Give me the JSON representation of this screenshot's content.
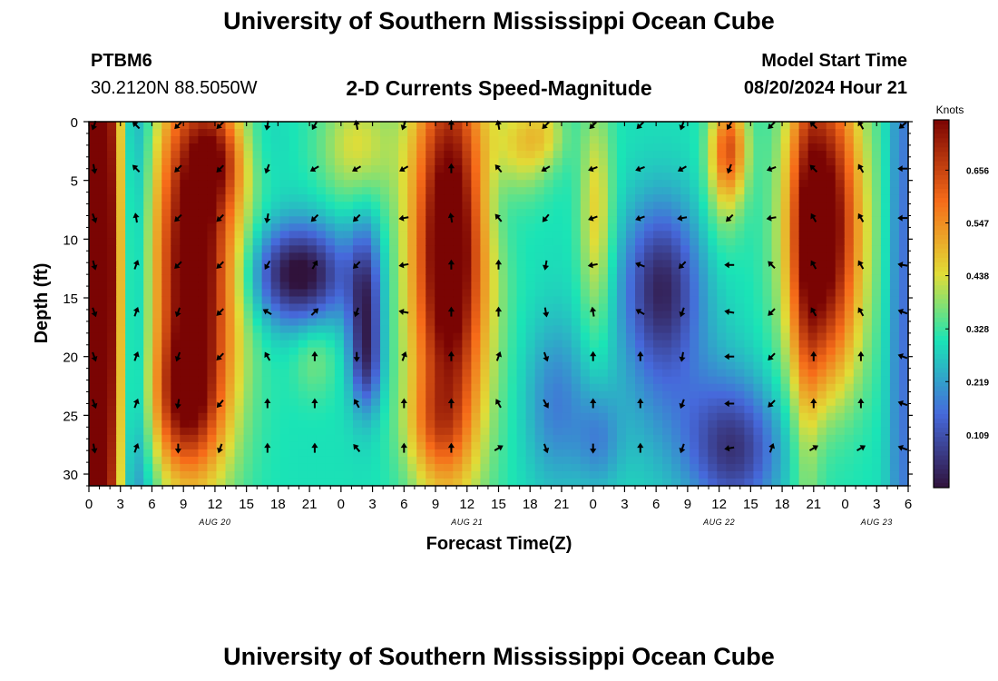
{
  "header": {
    "title": "University of Southern Mississippi Ocean Cube",
    "station": "PTBM6",
    "coords": "30.2120N  88.5050W",
    "plot_title": "2-D Currents Speed-Magnitude",
    "start_label": "Model Start Time",
    "start_value": "08/20/2024 Hour 21"
  },
  "footer": {
    "title": "University of Southern Mississippi Ocean Cube"
  },
  "colors": {
    "dark_blue": "#30123b",
    "blue": "#4669db",
    "cyan": "#1ae4b6",
    "yellow": "#e1dd37",
    "orange": "#f66b19",
    "dark_red": "#7a0403",
    "arrow": "#000000"
  },
  "chart_data": {
    "type": "heatmap",
    "title": "2-D Currents Speed-Magnitude",
    "xlabel": "Forecast Time(Z)",
    "ylabel": "Depth (ft)",
    "x_range_hours": [
      0,
      78
    ],
    "y_range_ft": [
      0,
      31
    ],
    "x_ticks": [
      {
        "hour": 0,
        "label": "0"
      },
      {
        "hour": 3,
        "label": "3"
      },
      {
        "hour": 6,
        "label": "6"
      },
      {
        "hour": 9,
        "label": "9"
      },
      {
        "hour": 12,
        "label": "12"
      },
      {
        "hour": 15,
        "label": "15"
      },
      {
        "hour": 18,
        "label": "18"
      },
      {
        "hour": 21,
        "label": "21"
      },
      {
        "hour": 24,
        "label": "0"
      },
      {
        "hour": 27,
        "label": "3"
      },
      {
        "hour": 30,
        "label": "6"
      },
      {
        "hour": 33,
        "label": "9"
      },
      {
        "hour": 36,
        "label": "12"
      },
      {
        "hour": 39,
        "label": "15"
      },
      {
        "hour": 42,
        "label": "18"
      },
      {
        "hour": 45,
        "label": "21"
      },
      {
        "hour": 48,
        "label": "0"
      },
      {
        "hour": 51,
        "label": "3"
      },
      {
        "hour": 54,
        "label": "6"
      },
      {
        "hour": 57,
        "label": "9"
      },
      {
        "hour": 60,
        "label": "12"
      },
      {
        "hour": 63,
        "label": "15"
      },
      {
        "hour": 66,
        "label": "18"
      },
      {
        "hour": 69,
        "label": "21"
      },
      {
        "hour": 72,
        "label": "0"
      },
      {
        "hour": 75,
        "label": "3"
      },
      {
        "hour": 78,
        "label": "6"
      }
    ],
    "date_labels": [
      {
        "hour": 12,
        "label": "AUG 20"
      },
      {
        "hour": 36,
        "label": "AUG 21"
      },
      {
        "hour": 60,
        "label": "AUG 22"
      },
      {
        "hour": 75,
        "label": "AUG 23"
      }
    ],
    "y_ticks": [
      0,
      5,
      10,
      15,
      20,
      25,
      30
    ],
    "colorbar": {
      "label": "Knots",
      "range": [
        0.0,
        0.76
      ],
      "ticks": [
        "0.656",
        "0.547",
        "0.438",
        "0.328",
        "0.219",
        "0.109"
      ],
      "tick_values": [
        0.656,
        0.547,
        0.438,
        0.328,
        0.219,
        0.109
      ]
    },
    "speed_blobs": [
      {
        "t": 0.5,
        "d": 15,
        "st": 1.5,
        "sd": 40,
        "v": 0.33
      },
      {
        "t": 1.8,
        "d": 12,
        "st": 1.2,
        "sd": 40,
        "v": 0.36
      },
      {
        "t": 3.9,
        "d": 15,
        "st": 1.6,
        "sd": 60,
        "v": -0.16
      },
      {
        "t": 10.0,
        "d": 12,
        "st": 3.0,
        "sd": 12,
        "v": 0.52
      },
      {
        "t": 9.0,
        "d": 24,
        "st": 2.3,
        "sd": 4,
        "v": 0.22
      },
      {
        "t": 12.5,
        "d": 3,
        "st": 2.0,
        "sd": 3,
        "v": 0.2
      },
      {
        "t": 15.5,
        "d": 2,
        "st": 2.0,
        "sd": 3,
        "v": -0.05
      },
      {
        "t": 20.0,
        "d": 13,
        "st": 3.2,
        "sd": 3.0,
        "v": -0.32
      },
      {
        "t": 26.3,
        "d": 16,
        "st": 1.1,
        "sd": 5.0,
        "v": -0.25
      },
      {
        "t": 26.5,
        "d": 21,
        "st": 1.0,
        "sd": 2.5,
        "v": -0.1
      },
      {
        "t": 25.5,
        "d": 2,
        "st": 2.5,
        "sd": 3.5,
        "v": 0.14
      },
      {
        "t": 21.5,
        "d": 20,
        "st": 1.5,
        "sd": 2.5,
        "v": 0.07
      },
      {
        "t": 34.3,
        "d": 11,
        "st": 2.6,
        "sd": 13,
        "v": 0.55
      },
      {
        "t": 33.0,
        "d": 26,
        "st": 2.0,
        "sd": 3,
        "v": 0.12
      },
      {
        "t": 41.0,
        "d": 2,
        "st": 2.0,
        "sd": 3,
        "v": 0.15
      },
      {
        "t": 43.5,
        "d": 1,
        "st": 1.5,
        "sd": 2,
        "v": 0.1
      },
      {
        "t": 39.0,
        "d": 5,
        "st": 1.5,
        "sd": 4,
        "v": -0.05
      },
      {
        "t": 44.5,
        "d": 24,
        "st": 2.0,
        "sd": 5,
        "v": -0.12
      },
      {
        "t": 48.3,
        "d": 8,
        "st": 1.1,
        "sd": 7,
        "v": 0.16
      },
      {
        "t": 48.5,
        "d": 27,
        "st": 1.5,
        "sd": 3,
        "v": -0.1
      },
      {
        "t": 54.5,
        "d": 14,
        "st": 2.6,
        "sd": 5,
        "v": -0.26
      },
      {
        "t": 56.0,
        "d": 24,
        "st": 4.0,
        "sd": 5,
        "v": -0.08
      },
      {
        "t": 61.0,
        "d": 2,
        "st": 1.2,
        "sd": 3,
        "v": 0.26
      },
      {
        "t": 60.5,
        "d": 5,
        "st": 1.3,
        "sd": 4,
        "v": 0.1
      },
      {
        "t": 61.5,
        "d": 28,
        "st": 3.0,
        "sd": 4,
        "v": -0.22
      },
      {
        "t": 70.0,
        "d": 9,
        "st": 2.5,
        "sd": 10,
        "v": 0.52
      },
      {
        "t": 68.3,
        "d": 15,
        "st": 1.0,
        "sd": 16,
        "v": 0.12
      },
      {
        "t": 70.0,
        "d": 27,
        "st": 2.5,
        "sd": 4,
        "v": -0.05
      },
      {
        "t": 77.5,
        "d": 15,
        "st": 1.0,
        "sd": 30,
        "v": -0.14
      }
    ],
    "arrow_cols_hours": [
      0.5,
      4.5,
      8.5,
      12.5,
      17.0,
      21.5,
      25.5,
      30.0,
      34.5,
      39.0,
      43.5,
      48.0,
      52.5,
      56.5,
      61.0,
      65.0,
      69.0,
      73.5,
      77.5
    ],
    "arrow_rows_ft": [
      0.3,
      4.0,
      8.2,
      12.2,
      16.2,
      20.0,
      24.0,
      27.8
    ],
    "arrow_dirs": [
      [
        200,
        315,
        225,
        225,
        190,
        210,
        350,
        200,
        0,
        350,
        225,
        225,
        225,
        200,
        210,
        225,
        315,
        330,
        230
      ],
      [
        170,
        315,
        225,
        225,
        200,
        240,
        240,
        240,
        0,
        320,
        240,
        250,
        250,
        240,
        200,
        250,
        315,
        330,
        270
      ],
      [
        160,
        350,
        225,
        225,
        190,
        225,
        225,
        260,
        350,
        320,
        220,
        250,
        250,
        260,
        225,
        260,
        330,
        330,
        270
      ],
      [
        165,
        20,
        225,
        225,
        210,
        30,
        225,
        260,
        0,
        0,
        190,
        260,
        290,
        225,
        270,
        315,
        330,
        330,
        280
      ],
      [
        160,
        20,
        200,
        225,
        300,
        45,
        200,
        280,
        0,
        0,
        170,
        350,
        300,
        200,
        280,
        225,
        330,
        330,
        290
      ],
      [
        160,
        20,
        200,
        225,
        330,
        0,
        180,
        20,
        0,
        20,
        160,
        0,
        0,
        190,
        270,
        225,
        0,
        0,
        290
      ],
      [
        160,
        20,
        190,
        220,
        0,
        0,
        330,
        0,
        0,
        330,
        150,
        0,
        0,
        200,
        270,
        225,
        0,
        0,
        290
      ],
      [
        170,
        20,
        180,
        200,
        0,
        0,
        320,
        0,
        0,
        60,
        160,
        180,
        0,
        200,
        260,
        20,
        60,
        60,
        290
      ]
    ]
  }
}
